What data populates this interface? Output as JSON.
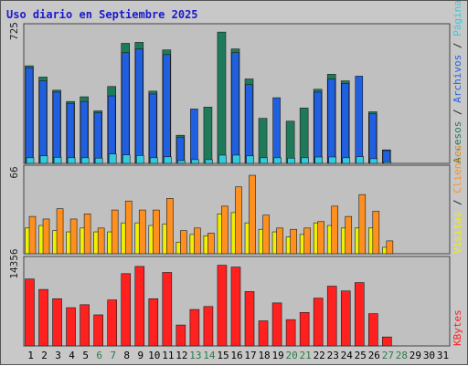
{
  "chart_data": [
    {
      "type": "bar",
      "title": "Uso diario en Septiembre 2025",
      "categories": [
        "1",
        "2",
        "3",
        "4",
        "5",
        "6",
        "7",
        "8",
        "9",
        "10",
        "11",
        "12",
        "13",
        "14",
        "15",
        "16",
        "17",
        "18",
        "19",
        "20",
        "21",
        "22",
        "23",
        "24",
        "25",
        "26",
        "27",
        "28",
        "29",
        "30",
        "31"
      ],
      "weekend_days": [
        "6",
        "7",
        "13",
        "14",
        "20",
        "21",
        "27",
        "28"
      ],
      "ymax_label": "725",
      "ylim": [
        0,
        725
      ],
      "series": [
        {
          "name": "Accesos",
          "color": "#1f7a5a",
          "values": [
            520,
            460,
            390,
            330,
            355,
            280,
            410,
            640,
            645,
            385,
            605,
            150,
            0,
            300,
            700,
            610,
            450,
            240,
            0,
            225,
            295,
            395,
            475,
            440,
            0,
            275,
            72,
            0,
            0,
            0,
            0
          ]
        },
        {
          "name": "Archivos",
          "color": "#1f5fe0",
          "values": [
            510,
            440,
            380,
            320,
            330,
            270,
            360,
            590,
            610,
            370,
            580,
            140,
            290,
            0,
            0,
            590,
            420,
            0,
            350,
            0,
            0,
            380,
            450,
            425,
            465,
            265,
            68,
            0,
            0,
            0,
            0
          ]
        },
        {
          "name": "Páginas",
          "color": "#33ccdd",
          "values": [
            30,
            40,
            32,
            30,
            30,
            28,
            50,
            45,
            42,
            30,
            35,
            15,
            20,
            20,
            44,
            44,
            40,
            30,
            30,
            28,
            30,
            34,
            34,
            30,
            36,
            25,
            8,
            0,
            0,
            0,
            0
          ]
        }
      ]
    },
    {
      "type": "bar",
      "ymax_label": "66",
      "ylim": [
        0,
        66
      ],
      "series": [
        {
          "name": "Visitas",
          "color": "#f0f000",
          "values": [
            20,
            22,
            18,
            17,
            20,
            17,
            17,
            24,
            24,
            22,
            23,
            9,
            15,
            14,
            31,
            32,
            24,
            19,
            17,
            13,
            15,
            24,
            22,
            20,
            20,
            20,
            5,
            0,
            0,
            0,
            0
          ]
        },
        {
          "name": "Clientes",
          "color": "#ff9020",
          "values": [
            29,
            27,
            35,
            27,
            31,
            20,
            34,
            41,
            34,
            34,
            43,
            18,
            20,
            16,
            37,
            52,
            61,
            30,
            20,
            19,
            20,
            25,
            37,
            29,
            46,
            33,
            10,
            0,
            0,
            0,
            0
          ]
        }
      ]
    },
    {
      "type": "bar",
      "ymax_label": "14356",
      "ylim": [
        0,
        14356
      ],
      "series": [
        {
          "name": "KBytes",
          "color": "#ff2020",
          "values": [
            11200,
            9450,
            7900,
            6400,
            6900,
            5200,
            7700,
            12100,
            13300,
            7900,
            12300,
            3500,
            6100,
            6600,
            13500,
            13200,
            9100,
            4200,
            7200,
            4400,
            5600,
            8000,
            10000,
            9200,
            10600,
            5400,
            1500,
            0,
            0,
            0,
            0
          ]
        }
      ]
    }
  ],
  "axis_colors": {
    "weekday": "#000000",
    "weekend": "#2a7a4a"
  },
  "right_labels": {
    "top": [
      "Accesos",
      "/",
      "Archivos",
      "/",
      "Páginas"
    ],
    "mid": [
      "Visitas",
      "/",
      "Clientes"
    ],
    "bottom": [
      "KBytes"
    ]
  }
}
